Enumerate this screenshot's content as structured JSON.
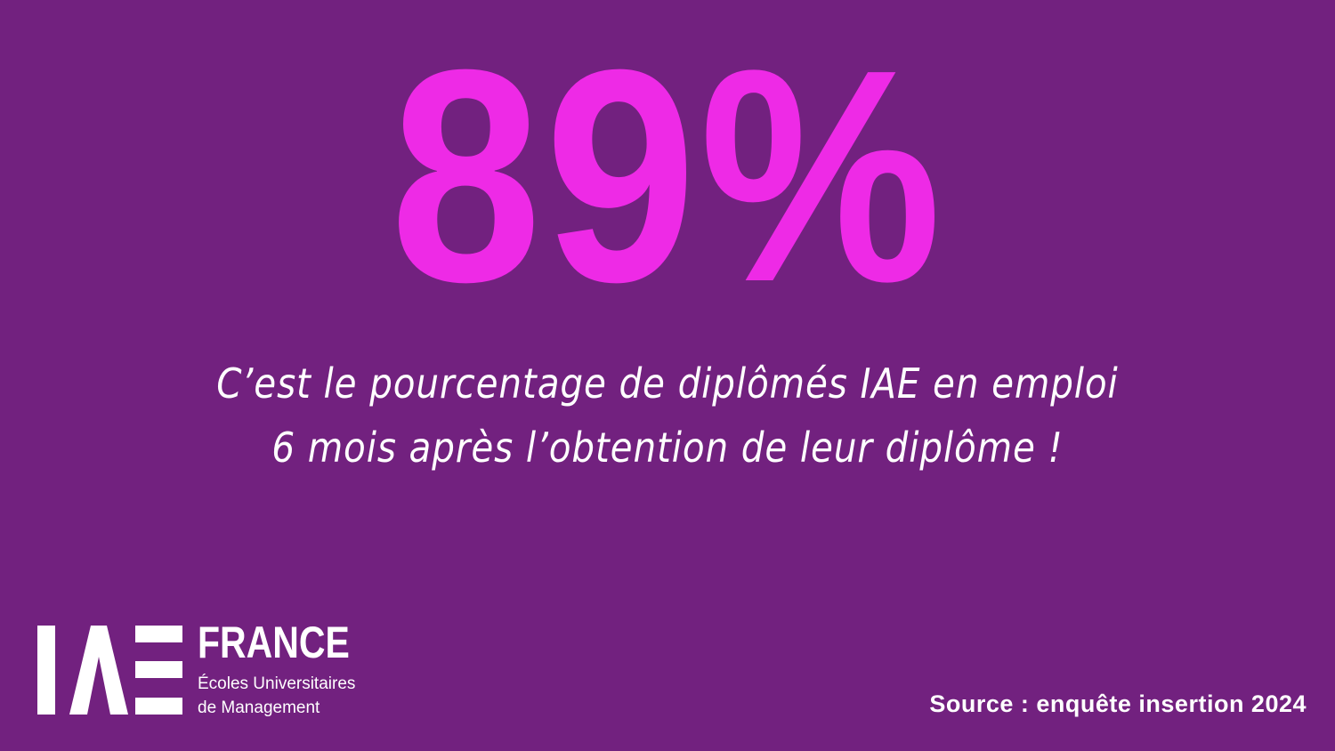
{
  "headline": {
    "figure": "89%",
    "lines": [
      "C’est le pourcentage de diplômés IAE en emploi",
      "6 mois après l’obtention de leur diplôme !"
    ]
  },
  "logo": {
    "name": "FRANCE",
    "tagline": [
      "Écoles Universitaires",
      "de Management"
    ]
  },
  "source": "Source : enquête insertion 2024"
}
